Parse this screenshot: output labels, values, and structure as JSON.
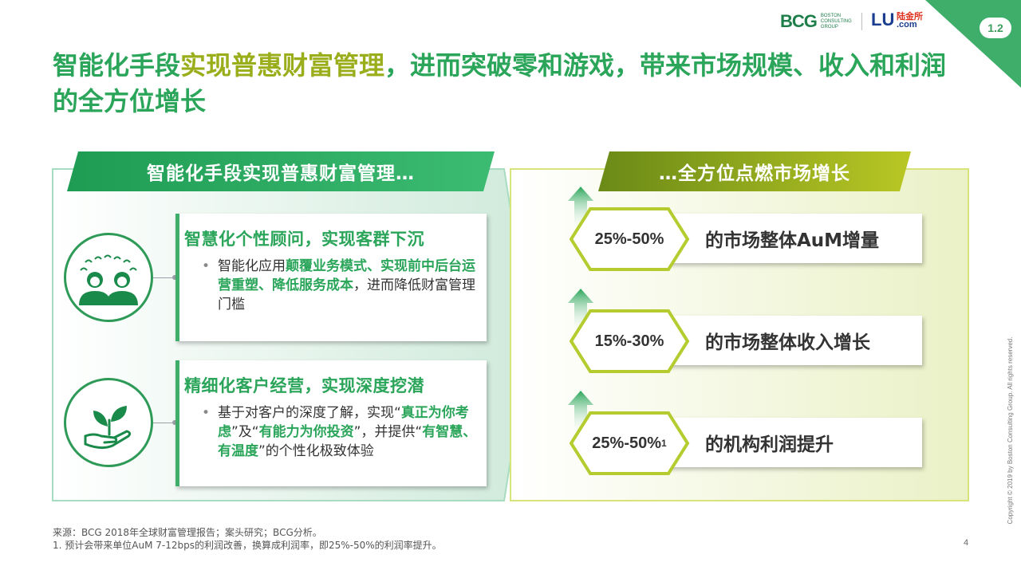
{
  "page_number": "1.2",
  "slide_number": "4",
  "logos": {
    "bcg_mark": "BCG",
    "bcg_sub": "BOSTON CONSULTING GROUP",
    "lu_mark": "LU",
    "lu_cn": "陆金所",
    "lu_com": ".com"
  },
  "title": {
    "part1": "智能化手段",
    "part2": "实现普惠财富管理",
    "part3": "，进而突破零和游戏，带来市场规模、收入和利润的全方位增长"
  },
  "left_banner": "智能化手段实现普惠财富管理…",
  "right_banner": "…全方位点燃市场增长",
  "left_cards": [
    {
      "title": "智慧化个性顾问，实现客群下沉",
      "bullet": "•",
      "seg1": "智能化应用",
      "seg2": "颠覆业务模式、实现前中后台运营重塑、降低服务成本",
      "seg3": "，进而降低财富管理门槛"
    },
    {
      "title": "精细化客户经营，实现深度挖潜",
      "bullet": "•",
      "seg1": "基于对客户的深度了解，实现“",
      "seg2": "真正为你考虑",
      "seg3": "”及“",
      "seg4": "有能力为你投资",
      "seg5": "”，并提供“",
      "seg6": "有智慧、有温度",
      "seg7": "”的个性化极致体验"
    }
  ],
  "right_cards": [
    {
      "value": "25%-50%",
      "sup": "",
      "text": "的市场整体AuM增量"
    },
    {
      "value": "15%-30%",
      "sup": "",
      "text": "的市场整体收入增长"
    },
    {
      "value": "25%-50%",
      "sup": "1",
      "text": "的机构利润提升"
    }
  ],
  "footer": {
    "source": "来源：BCG 2018年全球财富管理报告；案头研究；BCG分析。",
    "note": "1. 预计会带来单位AuM 7-12bps的利润改善，换算成利润率，即25%-50%的利润率提升。"
  },
  "copyright": "Copyright © 2019 by Boston Consulting Group. All rights reserved.",
  "icons": {
    "people": "people-group-icon",
    "plant": "hand-plant-icon",
    "arrow": "up-arrow-icon"
  },
  "colors": {
    "green": "#2aa55a",
    "olive": "#9aae1c",
    "dark_green": "#2e9a57"
  }
}
